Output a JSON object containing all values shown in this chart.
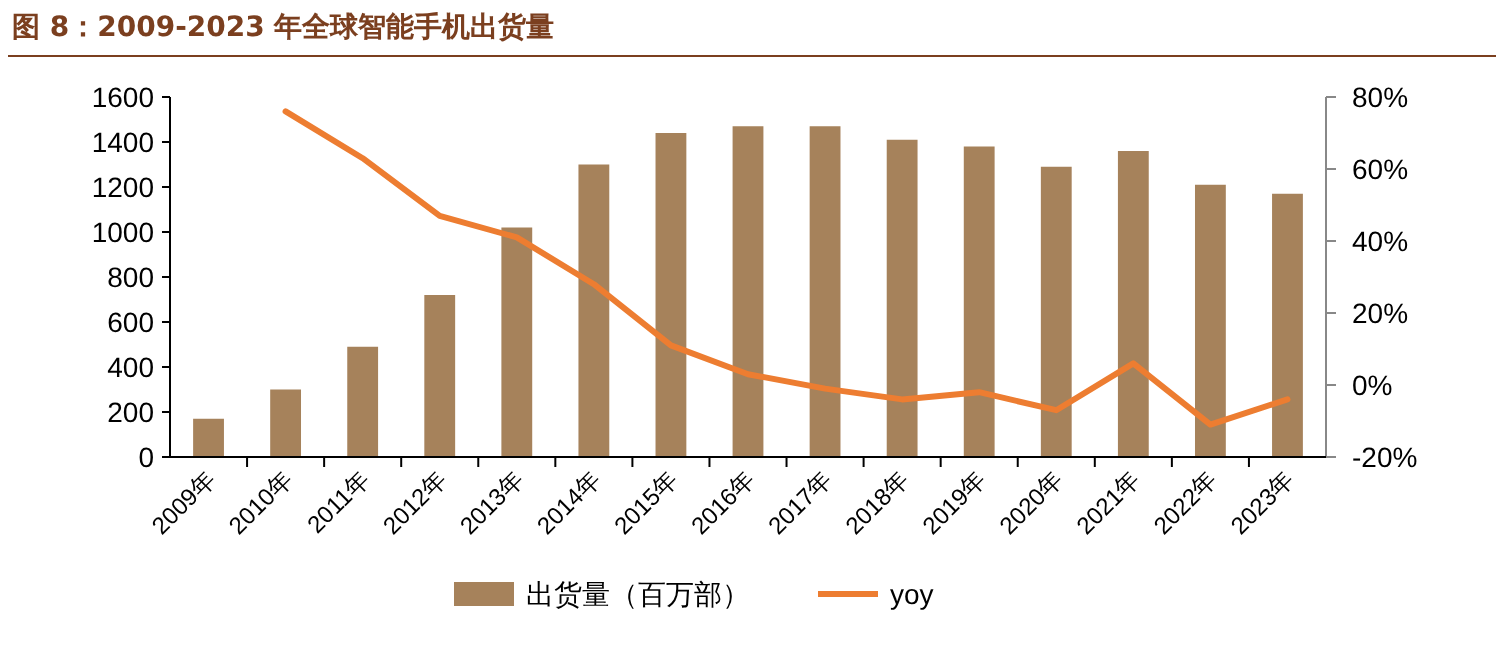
{
  "chart_data": {
    "type": "bar",
    "title": "图 8：2009-2023 年全球智能手机出货量",
    "categories": [
      "2009年",
      "2010年",
      "2011年",
      "2012年",
      "2013年",
      "2014年",
      "2015年",
      "2016年",
      "2017年",
      "2018年",
      "2019年",
      "2020年",
      "2021年",
      "2022年",
      "2023年"
    ],
    "series": [
      {
        "name": "出货量（百万部）",
        "color": "#a6825b",
        "values": [
          170,
          300,
          490,
          720,
          1020,
          1300,
          1440,
          1470,
          1470,
          1410,
          1380,
          1290,
          1360,
          1210,
          1170
        ]
      },
      {
        "name": "yoy",
        "type": "line",
        "axis": "y2",
        "color": "#ed7d31",
        "values": [
          null,
          76,
          63,
          47,
          41,
          28,
          11,
          3,
          -1,
          -4,
          -2,
          -7,
          6,
          -11,
          -4
        ]
      }
    ],
    "ylim": [
      0,
      1600
    ],
    "yticks": [
      0,
      200,
      400,
      600,
      800,
      1000,
      1200,
      1400,
      1600
    ],
    "y2lim": [
      -20,
      80
    ],
    "y2ticks": [
      {
        "value": -20,
        "label": "-20%"
      },
      {
        "value": 0,
        "label": "0%"
      },
      {
        "value": 20,
        "label": "20%"
      },
      {
        "value": 40,
        "label": "40%"
      },
      {
        "value": 60,
        "label": "60%"
      },
      {
        "value": 80,
        "label": "80%"
      }
    ],
    "legend": "bottom"
  }
}
